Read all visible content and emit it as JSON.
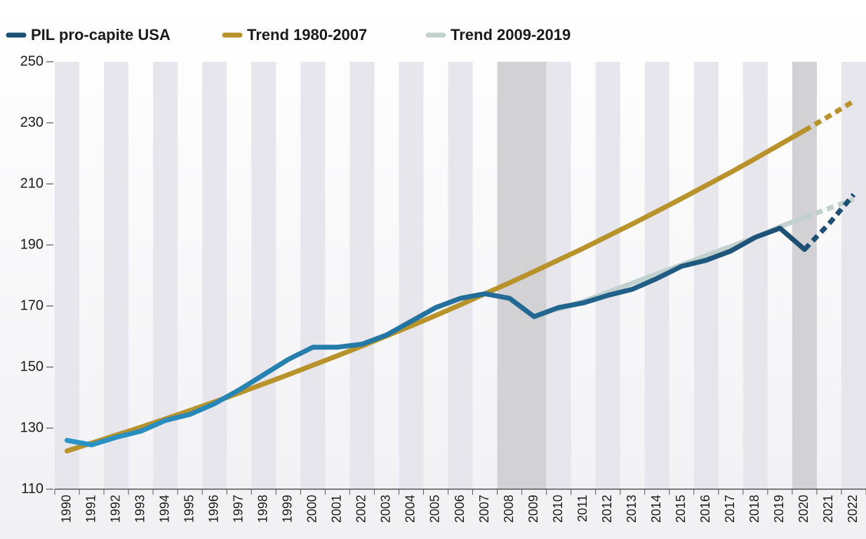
{
  "chart_data": {
    "type": "line",
    "categories": [
      "1990",
      "1991",
      "1992",
      "1993",
      "1994",
      "1995",
      "1996",
      "1997",
      "1998",
      "1999",
      "2000",
      "2001",
      "2002",
      "2003",
      "2004",
      "2005",
      "2006",
      "2007",
      "2008",
      "2009",
      "2010",
      "2011",
      "2012",
      "2013",
      "2014",
      "2015",
      "2016",
      "2017",
      "2018",
      "2019",
      "2020",
      "2021",
      "2022"
    ],
    "series": [
      {
        "name": "PIL pro-capite USA",
        "color": "#1d4e73",
        "color_start": "#2a96c8",
        "values": [
          126,
          124.5,
          127,
          129,
          132.5,
          134.5,
          138,
          142.5,
          147.5,
          152.5,
          156.5,
          156.5,
          157.5,
          160.5,
          165,
          169.5,
          172.5,
          174,
          172.5,
          166.5,
          169.5,
          171,
          173.5,
          175.5,
          179,
          183,
          185,
          188,
          192.5,
          195.5,
          188.5,
          197,
          206.5
        ]
      },
      {
        "name": "Trend 1980-2007",
        "color": "#b8922a",
        "values": [
          122.5,
          125.1,
          127.7,
          130.3,
          133,
          135.8,
          138.6,
          141.5,
          144.5,
          147.5,
          150.6,
          153.7,
          156.9,
          160.2,
          163.5,
          166.9,
          170.4,
          174,
          177.6,
          181.3,
          185.1,
          188.9,
          192.9,
          196.9,
          201,
          205.2,
          209.5,
          213.8,
          218.3,
          222.9,
          227.5,
          232.2,
          237.1
        ]
      },
      {
        "name": "Trend 2009-2019",
        "color": "#c3d1ce",
        "values": [
          null,
          null,
          null,
          null,
          null,
          null,
          null,
          null,
          null,
          null,
          null,
          null,
          null,
          null,
          null,
          null,
          null,
          null,
          null,
          null,
          169,
          171.5,
          174.5,
          177.5,
          180.5,
          183.5,
          186.5,
          189.5,
          192.5,
          196,
          199,
          202,
          205
        ]
      }
    ],
    "dashed_from": "2020",
    "shaded": [
      "2008",
      "2009",
      "2020"
    ],
    "ylim": [
      110,
      250
    ],
    "yticks": [
      110,
      130,
      150,
      170,
      190,
      210,
      230,
      250
    ]
  }
}
